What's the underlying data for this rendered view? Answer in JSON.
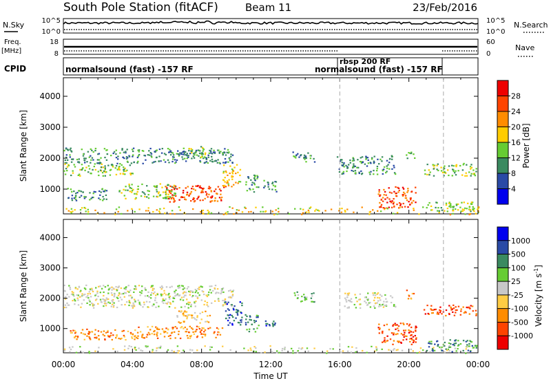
{
  "header": {
    "station": "South Pole Station (fitACF)",
    "beam": "Beam 11",
    "date": "23/Feb/2016"
  },
  "noise_panel": {
    "left_label": "N.Sky",
    "left_ticks": [
      "10^5",
      "10^0"
    ],
    "right_ticks": [
      "10^5",
      "10^0"
    ],
    "right_label": "N.Search"
  },
  "freq_panel": {
    "left_label": "Freq.",
    "left_unit": "[MHz]",
    "left_ticks": [
      "18",
      "8"
    ],
    "right_ticks": [
      "60",
      "0"
    ],
    "right_label": "Nave"
  },
  "cpid_panel": {
    "label": "CPID",
    "segments": [
      {
        "text": "normalsound (fast) -157 RF",
        "start": 0,
        "end": 16
      },
      {
        "text": "rbsp 200 RF",
        "start": 16,
        "end": 22
      },
      {
        "text": "normalsound (fast) -157 RF",
        "start": 16,
        "end": 22
      }
    ]
  },
  "colors": {
    "power": [
      "#0000ee",
      "#2a4aa6",
      "#3a8a60",
      "#66cc33",
      "#ffcc00",
      "#ff8c00",
      "#ff4400",
      "#ee0000"
    ],
    "velocity": [
      "#ee0000",
      "#ff4400",
      "#ff8c00",
      "#ffcc44",
      "#c8c8c8",
      "#66cc33",
      "#3a8a60",
      "#2a4aa6",
      "#0000ee"
    ]
  },
  "chart_data": [
    {
      "type": "heatmap",
      "name": "power",
      "ylabel": "Slant Range [km]",
      "yticks": [
        1000,
        2000,
        3000,
        4000
      ],
      "ylim": [
        200,
        4600
      ],
      "xlim": [
        0,
        24
      ],
      "colorbar_label": "Power [dB]",
      "colorbar_ticks": [
        "4",
        "8",
        "12",
        "16",
        "20",
        "24",
        "28"
      ],
      "colorbar_range": [
        0,
        32
      ],
      "regions": [
        {
          "x0": 0.0,
          "x1": 9.8,
          "y0": 1850,
          "y1": 2350,
          "level": 2
        },
        {
          "x0": 0.0,
          "x1": 4.0,
          "y0": 1450,
          "y1": 1850,
          "level": 3
        },
        {
          "x0": 0.2,
          "x1": 2.5,
          "y0": 650,
          "y1": 1050,
          "level": 2
        },
        {
          "x0": 3.2,
          "x1": 6.5,
          "y0": 700,
          "y1": 1200,
          "level": 3
        },
        {
          "x0": 5.8,
          "x1": 9.4,
          "y0": 600,
          "y1": 1150,
          "level": 6
        },
        {
          "x0": 7.2,
          "x1": 8.2,
          "y0": 2000,
          "y1": 2400,
          "level": 3
        },
        {
          "x0": 9.2,
          "x1": 10.2,
          "y0": 1100,
          "y1": 1900,
          "level": 4
        },
        {
          "x0": 10.5,
          "x1": 11.3,
          "y0": 900,
          "y1": 1500,
          "level": 2
        },
        {
          "x0": 11.5,
          "x1": 12.3,
          "y0": 900,
          "y1": 1300,
          "level": 2
        },
        {
          "x0": 13.2,
          "x1": 14.6,
          "y0": 1900,
          "y1": 2250,
          "level": 2
        },
        {
          "x0": 15.8,
          "x1": 19.2,
          "y0": 1500,
          "y1": 2100,
          "level": 2
        },
        {
          "x0": 18.2,
          "x1": 20.4,
          "y0": 400,
          "y1": 1100,
          "level": 6
        },
        {
          "x0": 20.8,
          "x1": 23.9,
          "y0": 1450,
          "y1": 1850,
          "level": 3
        },
        {
          "x0": 19.8,
          "x1": 20.3,
          "y0": 2000,
          "y1": 2300,
          "level": 3
        },
        {
          "x0": 21.0,
          "x1": 23.9,
          "y0": 300,
          "y1": 600,
          "level": 3
        },
        {
          "x0": 0.0,
          "x1": 24.0,
          "y0": 200,
          "y1": 450,
          "level": 4
        }
      ]
    },
    {
      "type": "heatmap",
      "name": "velocity",
      "ylabel": "Slant Range [km]",
      "yticks": [
        1000,
        2000,
        3000,
        4000
      ],
      "ylim": [
        200,
        4600
      ],
      "xlim": [
        0,
        24
      ],
      "xlabel": "Time UT",
      "xticks": [
        "00:00",
        "04:00",
        "08:00",
        "12:00",
        "16:00",
        "20:00",
        "00:00"
      ],
      "colorbar_label": "Velocity [m s",
      "colorbar_exponent": "-1",
      "colorbar_ticks": [
        "-1000",
        "-500",
        "-100",
        "-25",
        "25",
        "100",
        "500",
        "1000"
      ],
      "regions": [
        {
          "x0": 0.0,
          "x1": 9.8,
          "y0": 1700,
          "y1": 2450,
          "level": 4
        },
        {
          "x0": 0.3,
          "x1": 4.2,
          "y0": 650,
          "y1": 1000,
          "level": 2
        },
        {
          "x0": 3.8,
          "x1": 9.2,
          "y0": 700,
          "y1": 1100,
          "level": 2
        },
        {
          "x0": 6.5,
          "x1": 8.5,
          "y0": 1200,
          "y1": 1600,
          "level": 3
        },
        {
          "x0": 9.3,
          "x1": 10.3,
          "y0": 1100,
          "y1": 1900,
          "level": 7
        },
        {
          "x0": 10.5,
          "x1": 11.3,
          "y0": 900,
          "y1": 1500,
          "level": 6
        },
        {
          "x0": 11.5,
          "x1": 12.3,
          "y0": 1000,
          "y1": 1300,
          "level": 7
        },
        {
          "x0": 13.3,
          "x1": 14.6,
          "y0": 1900,
          "y1": 2250,
          "level": 5
        },
        {
          "x0": 16.2,
          "x1": 19.2,
          "y0": 1700,
          "y1": 2200,
          "level": 4
        },
        {
          "x0": 18.2,
          "x1": 20.4,
          "y0": 500,
          "y1": 1200,
          "level": 1
        },
        {
          "x0": 20.8,
          "x1": 23.9,
          "y0": 1450,
          "y1": 1800,
          "level": 1
        },
        {
          "x0": 19.8,
          "x1": 20.3,
          "y0": 2000,
          "y1": 2300,
          "level": 2
        },
        {
          "x0": 21.0,
          "x1": 23.9,
          "y0": 250,
          "y1": 650,
          "level": 6
        },
        {
          "x0": 0.0,
          "x1": 24.0,
          "y0": 200,
          "y1": 450,
          "level": 4
        }
      ]
    }
  ]
}
